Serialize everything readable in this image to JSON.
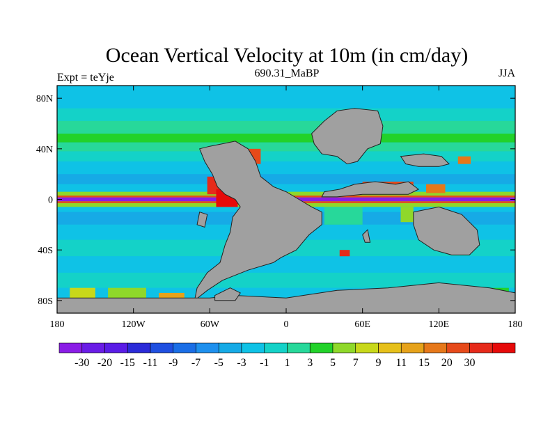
{
  "chart_data": {
    "type": "heatmap",
    "title": "Ocean Vertical Velocity at 10m (in cm/day)",
    "left_label": "Expt = teYje",
    "center_label": "690.31_MaBP",
    "right_label": "JJA",
    "x_axis": {
      "range": [
        -180,
        180
      ],
      "ticks": [
        {
          "value": -180,
          "label": "180"
        },
        {
          "value": -120,
          "label": "120W"
        },
        {
          "value": -60,
          "label": "60W"
        },
        {
          "value": 0,
          "label": "0"
        },
        {
          "value": 60,
          "label": "60E"
        },
        {
          "value": 120,
          "label": "120E"
        },
        {
          "value": 180,
          "label": "180"
        }
      ]
    },
    "y_axis": {
      "range": [
        -90,
        90
      ],
      "ticks": [
        {
          "value": 80,
          "label": "80N"
        },
        {
          "value": 40,
          "label": "40N"
        },
        {
          "value": 0,
          "label": "0"
        },
        {
          "value": -40,
          "label": "40S"
        },
        {
          "value": -80,
          "label": "80S"
        }
      ]
    },
    "colorbar": {
      "colors": [
        "#8a1ce6",
        "#6a1ce6",
        "#5a1ce6",
        "#2b2bd8",
        "#1f4fe0",
        "#1a6ee6",
        "#1e90ee",
        "#16aae6",
        "#0fc2e6",
        "#14d2c8",
        "#27d89a",
        "#22d22a",
        "#8fd82a",
        "#c8d81a",
        "#e6c01a",
        "#e6a21a",
        "#e6781a",
        "#e64a1a",
        "#e62a1a",
        "#e60a0a"
      ],
      "labels": [
        "-30",
        "-20",
        "-15",
        "-11",
        "-9",
        "-7",
        "-5",
        "-3",
        "-1",
        "1",
        "3",
        "5",
        "7",
        "9",
        "11",
        "15",
        "20",
        "30"
      ]
    },
    "field_description": {
      "equatorial_downwelling": "-30",
      "equatorial_upwelling_flank": "30",
      "land_color": "#a0a0a0"
    }
  }
}
